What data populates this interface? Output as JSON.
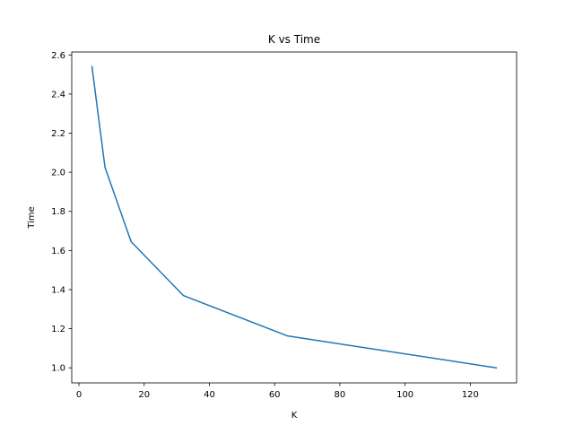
{
  "chart_data": {
    "type": "line",
    "title": "K vs Time",
    "xlabel": "K",
    "ylabel": "Time",
    "xlim": [
      -2.2,
      134.2
    ],
    "ylim": [
      0.923,
      2.615
    ],
    "xticks": [
      0,
      20,
      40,
      60,
      80,
      100,
      120
    ],
    "yticks": [
      1.0,
      1.2,
      1.4,
      1.6,
      1.8,
      2.0,
      2.2,
      2.4,
      2.6
    ],
    "grid": false,
    "series": [
      {
        "color": "#1f77b4",
        "x": [
          4,
          8,
          16,
          32,
          64,
          128
        ],
        "y": [
          2.54,
          2.025,
          1.645,
          1.37,
          1.163,
          1.0
        ]
      }
    ]
  }
}
